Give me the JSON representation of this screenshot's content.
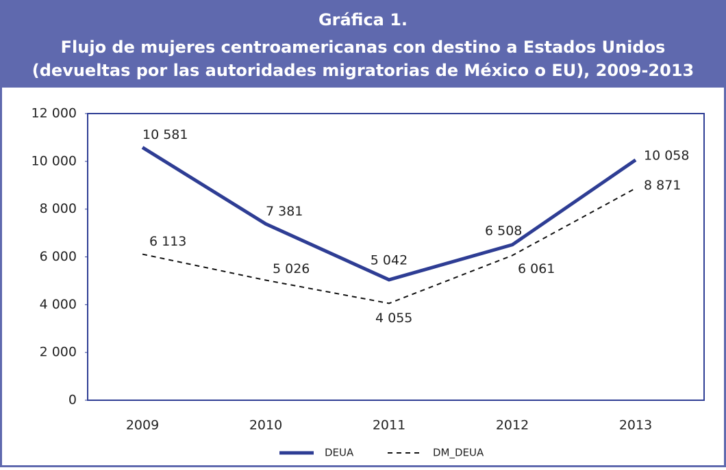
{
  "chart_data": {
    "type": "line",
    "title_lines": [
      "Gráfica 1.",
      "Flujo de mujeres centroamericanas con destino a Estados Unidos",
      "(devueltas por las autoridades migratorias de México o EU), 2009-2013"
    ],
    "categories": [
      "2009",
      "2010",
      "2011",
      "2012",
      "2013"
    ],
    "series": [
      {
        "name": "DEUA",
        "color": "#2e3d94",
        "dash": false,
        "values": [
          10581,
          7381,
          5042,
          6508,
          10058
        ],
        "value_labels": [
          "10 581",
          "7 381",
          "5 042",
          "6 508",
          "10 058"
        ]
      },
      {
        "name": "DM_DEUA",
        "color": "#111111",
        "dash": true,
        "values": [
          6113,
          5026,
          4055,
          6061,
          8871
        ],
        "value_labels": [
          "6 113",
          "5 026",
          "4 055",
          "6 061",
          "8 871"
        ]
      }
    ],
    "ylim": [
      0,
      12000
    ],
    "yticks": [
      0,
      {
        "value": 2000,
        "label": "2 000"
      },
      {
        "value": 4000,
        "label": "4 000"
      },
      {
        "value": 6000,
        "label": "6 000"
      },
      {
        "value": 8000,
        "label": "8 000"
      },
      {
        "value": 10000,
        "label": "10 000"
      },
      {
        "value": 12000,
        "label": "12 000"
      }
    ],
    "legend": "bottom"
  }
}
